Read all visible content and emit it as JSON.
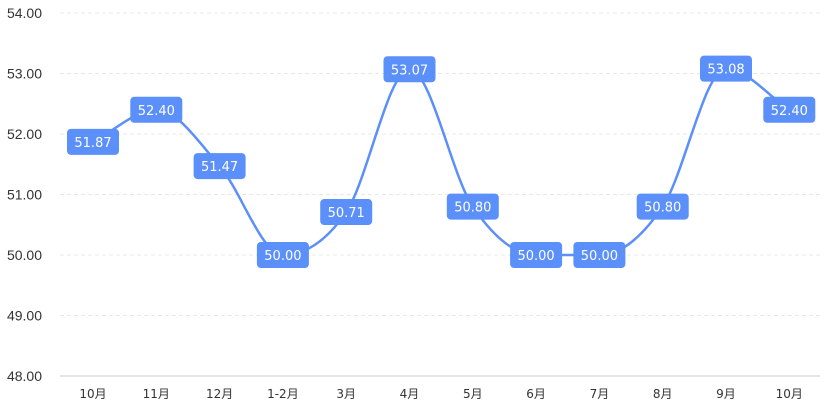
{
  "chart_data": {
    "type": "line",
    "smooth": true,
    "categories": [
      "10月",
      "11月",
      "12月",
      "1-2月",
      "3月",
      "4月",
      "5月",
      "6月",
      "7月",
      "8月",
      "9月",
      "10月"
    ],
    "series": [
      {
        "values": [
          51.87,
          52.4,
          51.47,
          50.0,
          50.71,
          53.07,
          50.8,
          50.0,
          50.0,
          50.8,
          53.08,
          52.4
        ]
      }
    ],
    "value_labels": [
      "51.87",
      "52.40",
      "51.47",
      "50.00",
      "50.71",
      "53.07",
      "50.80",
      "50.00",
      "50.00",
      "50.80",
      "53.08",
      "52.40"
    ],
    "y_ticks": [
      "48.00",
      "49.00",
      "50.00",
      "51.00",
      "52.00",
      "53.00",
      "54.00"
    ],
    "ylim": [
      48,
      54
    ],
    "grid": true,
    "colors": {
      "line": "#5b8ff9",
      "label_bg": "#5b8ff9",
      "grid": "#e8e8e8"
    }
  }
}
